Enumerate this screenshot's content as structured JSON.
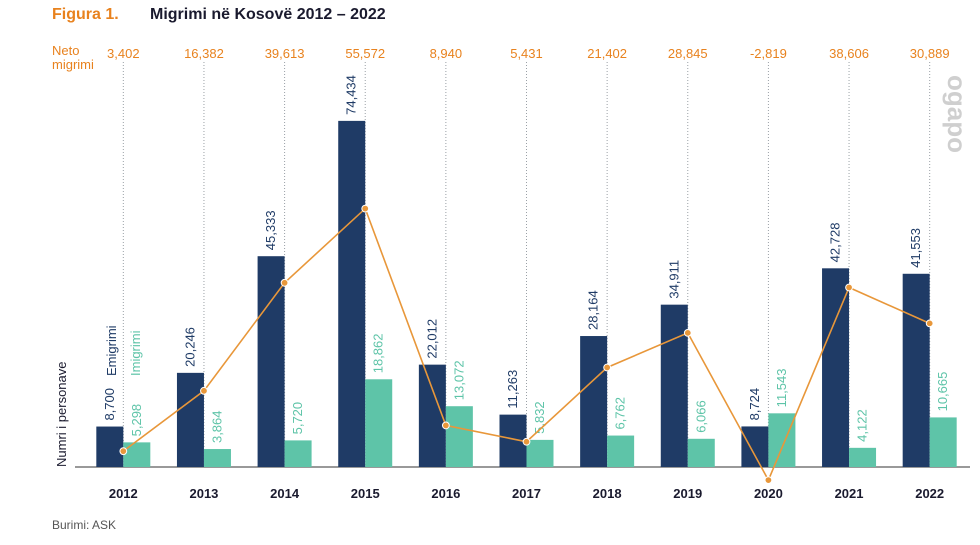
{
  "header": {
    "figure_label": "Figura 1.",
    "title": "Migrimi në Kosovë 2012 – 2022"
  },
  "net_header": "Neto migrimi",
  "source": "Burimi: ASK",
  "logo_text": "ogapo",
  "colors": {
    "emigration": "#1f3b66",
    "immigration": "#5ec4a8",
    "net_line": "#e8973a",
    "title_accent": "#e8821e"
  },
  "chart_data": {
    "type": "bar",
    "categories": [
      "2012",
      "2013",
      "2014",
      "2015",
      "2016",
      "2017",
      "2018",
      "2019",
      "2020",
      "2021",
      "2022"
    ],
    "ylabel": "Numri i personave",
    "ylim": [
      0,
      80000
    ],
    "series": [
      {
        "name": "Emigrimi",
        "type": "bar",
        "values": [
          8700,
          20246,
          45333,
          74434,
          22012,
          11263,
          28164,
          34911,
          8724,
          42728,
          41553
        ],
        "labels": [
          "8,700",
          "20,246",
          "45,333",
          "74,434",
          "22,012",
          "11,263",
          "28,164",
          "34,911",
          "8,724",
          "42,728",
          "41,553"
        ]
      },
      {
        "name": "Imigrimi",
        "type": "bar",
        "values": [
          5298,
          3864,
          5720,
          18862,
          13072,
          5832,
          6762,
          6066,
          11543,
          4122,
          10665
        ],
        "labels": [
          "5,298",
          "3,864",
          "5,720",
          "18,862",
          "13,072",
          "5,832",
          "6,762",
          "6,066",
          "11,543",
          "4,122",
          "10,665"
        ]
      },
      {
        "name": "Neto migrimi",
        "type": "line",
        "values": [
          3402,
          16382,
          39613,
          55572,
          8940,
          5431,
          21402,
          28845,
          -2819,
          38606,
          30889
        ],
        "labels": [
          "3,402",
          "16,382",
          "39,613",
          "55,572",
          "8,940",
          "5,431",
          "21,402",
          "28,845",
          "-2,819",
          "38,606",
          "30,889"
        ]
      }
    ]
  }
}
